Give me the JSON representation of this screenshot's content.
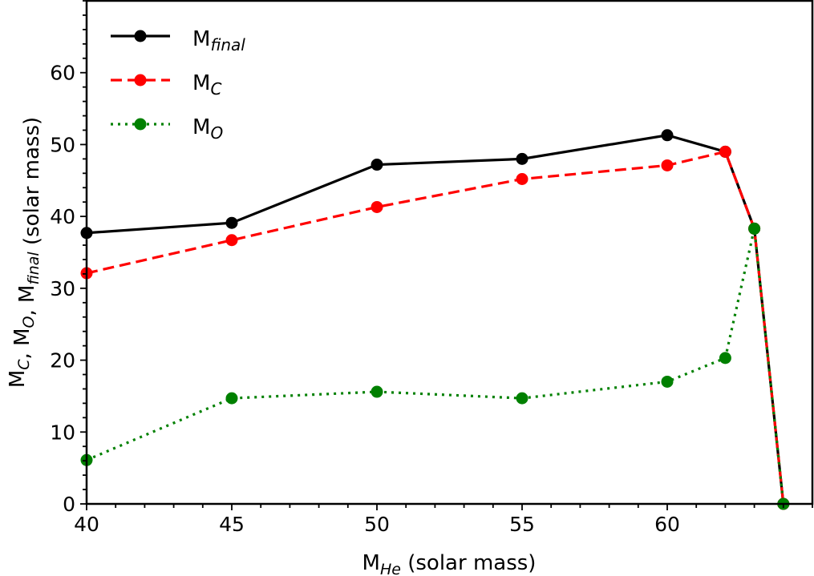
{
  "chart_data": {
    "type": "line",
    "title": "",
    "xlabel": {
      "main": "M",
      "sub": "He",
      "rest": " (solar mass)"
    },
    "ylabel": {
      "parts": [
        [
          "M",
          "C"
        ],
        [
          ", M",
          "O"
        ],
        [
          ", M",
          "final"
        ]
      ],
      "rest": " (solar mass)"
    },
    "xlim": [
      40,
      65
    ],
    "ylim": [
      0,
      70
    ],
    "xticks": [
      40,
      45,
      50,
      55,
      60
    ],
    "yticks": [
      0,
      10,
      20,
      30,
      40,
      50,
      60
    ],
    "grid": false,
    "legend_position": "top-left",
    "x": [
      40,
      45,
      50,
      55,
      60,
      62,
      63,
      64
    ],
    "series": [
      {
        "name": "M",
        "sub": "final",
        "color": "#000000",
        "dash": "",
        "values": [
          37.7,
          39.1,
          47.2,
          48.0,
          51.3,
          49.0,
          38.3,
          0
        ]
      },
      {
        "name": "M",
        "sub": "C",
        "color": "#ff0000",
        "dash": "14,7",
        "values": [
          32.1,
          36.7,
          41.3,
          45.2,
          47.1,
          49.0,
          38.3,
          0
        ]
      },
      {
        "name": "M",
        "sub": "O",
        "color": "#008000",
        "dash": "3,6",
        "values": [
          6.1,
          14.7,
          15.6,
          14.7,
          17.0,
          20.3,
          38.3,
          0
        ]
      }
    ]
  }
}
